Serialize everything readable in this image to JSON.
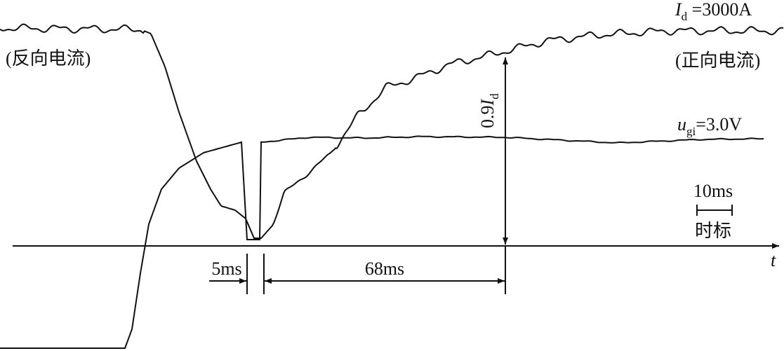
{
  "labels": {
    "reverse_current": "(反向电流)",
    "forward_current": "(正向电流)",
    "current": {
      "symbol": "I",
      "subscript": "d",
      "text": " =3000A"
    },
    "fraction": {
      "prefix": "0.9",
      "symbol": "I",
      "subscript": "d"
    },
    "voltage": {
      "symbol": "u",
      "subscript": "gi",
      "text": "=3.0V"
    },
    "time_scale": {
      "value": "10ms",
      "caption": "时标"
    },
    "delay": "5ms",
    "rise": "68ms",
    "time_axis": "t"
  }
}
